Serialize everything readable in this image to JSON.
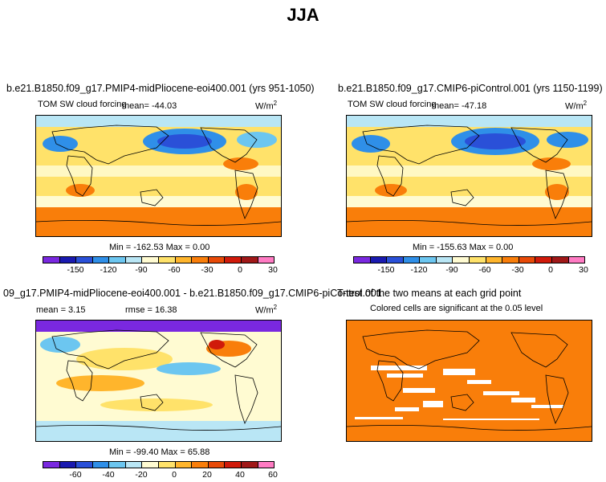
{
  "figure": {
    "title": "JJA"
  },
  "chart_data": [
    {
      "type": "heatmap",
      "title": "b.e21.B1850.f09_g17.PMIP4-midPliocene-eoi400.001 (yrs 951-1050)",
      "variable": "TOM SW cloud forcing",
      "mean_label": "mean= -44.03",
      "units": "W/m",
      "units_exp": "2",
      "stats": "Min = -162.53 Max = 0.00",
      "colorbar_ticks": [
        "-150",
        "-120",
        "-90",
        "-60",
        "-30",
        "0",
        "30"
      ],
      "colorbar_colors": [
        "#7a28e0",
        "#1a1ab0",
        "#2a50d8",
        "#2f8fe8",
        "#6cc6f0",
        "#b9e6f5",
        "#fffbd2",
        "#ffe26a",
        "#ffb52c",
        "#f97e0a",
        "#e84a08",
        "#d01a0a",
        "#a01818",
        "#ff7bc3"
      ]
    },
    {
      "type": "heatmap",
      "title": "b.e21.B1850.f09_g17.CMIP6-piControl.001 (yrs 1150-1199)",
      "variable": "TOM SW cloud forcing",
      "mean_label": "mean= -47.18",
      "units": "W/m",
      "units_exp": "2",
      "stats": "Min = -155.63 Max = 0.00",
      "colorbar_ticks": [
        "-150",
        "-120",
        "-90",
        "-60",
        "-30",
        "0",
        "30"
      ],
      "colorbar_colors": [
        "#7a28e0",
        "#1a1ab0",
        "#2a50d8",
        "#2f8fe8",
        "#6cc6f0",
        "#b9e6f5",
        "#fffbd2",
        "#ffe26a",
        "#ffb52c",
        "#f97e0a",
        "#e84a08",
        "#d01a0a",
        "#a01818",
        "#ff7bc3"
      ]
    },
    {
      "type": "heatmap",
      "title": "09_g17.PMIP4-midPliocene-eoi400.001 - b.e21.B1850.f09_g17.CMIP6-piControl.001",
      "mean_label": "mean =  3.15",
      "rmse_label": "rmse =  16.38",
      "units": "W/m",
      "units_exp": "2",
      "stats": "Min = -99.40 Max = 65.88",
      "colorbar_ticks": [
        "-60",
        "-40",
        "-20",
        "0",
        "20",
        "40",
        "60"
      ],
      "colorbar_colors": [
        "#7a28e0",
        "#1a1ab0",
        "#2a50d8",
        "#2f8fe8",
        "#6cc6f0",
        "#b9e6f5",
        "#fffbd2",
        "#ffe26a",
        "#ffb52c",
        "#f97e0a",
        "#e84a08",
        "#d01a0a",
        "#a01818",
        "#ff7bc3"
      ]
    },
    {
      "type": "heatmap",
      "title": "T-test of the two means at each grid point",
      "subtitle": "Colored cells are significant at the 0.05 level"
    }
  ]
}
